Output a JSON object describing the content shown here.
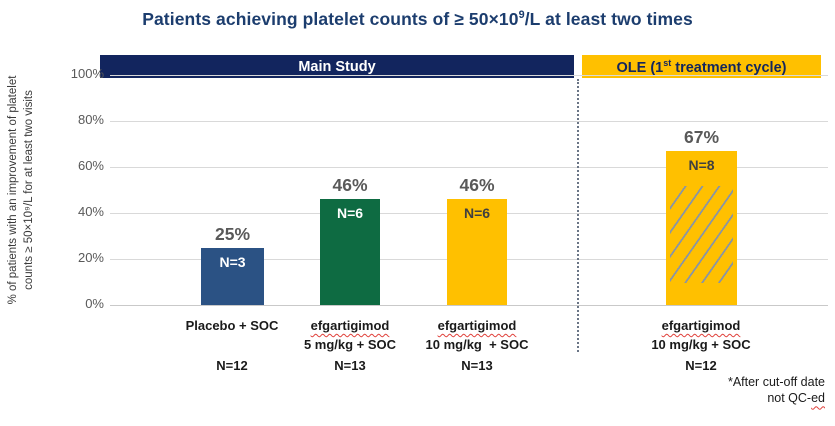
{
  "title": {
    "pre": "Patients achieving platelet counts of ≥ 50×10",
    "sup": "9",
    "post": "/L at least two times"
  },
  "sections": {
    "main_study": {
      "label": "Main Study"
    },
    "ole": {
      "pre": "OLE (1",
      "sup": "st",
      "post": " treatment cycle)"
    }
  },
  "y_axis": {
    "label_line1": "% of patients with an improvement of platelet",
    "label_line2": "counts ≥ 50×10⁹/L for at least two visits",
    "ticks": [
      "100%",
      "80%",
      "60%",
      "40%",
      "20%",
      "0%"
    ]
  },
  "footnote": {
    "line1": "*After cut-off  date",
    "line2_pre": "not QC-",
    "line2_wavy": "ed"
  },
  "colors": {
    "navy_band": "#12255e",
    "gold": "#ffc000",
    "green": "#0e6b42",
    "blue": "#2b5284",
    "grid": "#d9d9d9",
    "value_label_gray": "#595959",
    "separator_gray": "#6a7586"
  },
  "chart_data": {
    "type": "bar",
    "title": "Patients achieving platelet counts of ≥ 50×10⁹/L at least two times",
    "xlabel": "",
    "ylabel": "% of patients with an improvement of platelet counts ≥ 50×10⁹/L for at least two visits",
    "ylim": [
      0,
      100
    ],
    "ytick_values": [
      0,
      20,
      40,
      60,
      80,
      100
    ],
    "grid": true,
    "legend": false,
    "sections": [
      "Main Study",
      "OLE (1st treatment cycle)"
    ],
    "bars": [
      {
        "section": "Main Study",
        "arm_line1": "Placebo + SOC",
        "arm_line2": "",
        "arm_line3": "N=12",
        "value": 25,
        "value_label": "25%",
        "n_label": "N=3",
        "color": "#2b5284",
        "n_color": "#ffffff",
        "hatch": false
      },
      {
        "section": "Main Study",
        "arm_line1": "efgartigimod",
        "arm_line2": "5 mg/kg + SOC",
        "arm_line3": "N=13",
        "value": 46,
        "value_label": "46%",
        "n_label": "N=6",
        "color": "#0e6b42",
        "n_color": "#ffffff",
        "hatch": false
      },
      {
        "section": "Main Study",
        "arm_line1": "efgartigimod",
        "arm_line2": "10 mg/kg  + SOC",
        "arm_line3": "N=13",
        "value": 46,
        "value_label": "46%",
        "n_label": "N=6",
        "color": "#ffc000",
        "n_color": "#404040",
        "hatch": false
      },
      {
        "section": "OLE (1st treatment cycle)",
        "arm_line1": "efgartigimod",
        "arm_line2": "10 mg/kg + SOC",
        "arm_line3": "N=12",
        "value": 67,
        "value_label": "67%",
        "n_label": "N=8",
        "color": "#ffc000",
        "n_color": "#404040",
        "hatch": true
      }
    ]
  }
}
